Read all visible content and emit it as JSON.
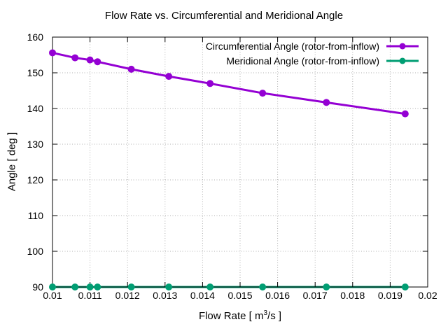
{
  "chart_data": {
    "type": "line",
    "title": "Flow Rate vs. Circumferential and Meridional Angle",
    "xlabel": "Flow Rate [ m^3/s ]",
    "ylabel": "Angle [ deg ]",
    "xlim": [
      0.01,
      0.02
    ],
    "ylim": [
      90,
      160
    ],
    "xticks": [
      0.01,
      0.011,
      0.012,
      0.013,
      0.014,
      0.015,
      0.016,
      0.017,
      0.018,
      0.019,
      0.02
    ],
    "xtick_labels": [
      "0.01",
      "0.011",
      "0.012",
      "0.013",
      "0.014",
      "0.015",
      "0.016",
      "0.017",
      "0.018",
      "0.019",
      "0.02"
    ],
    "yticks": [
      90,
      100,
      110,
      120,
      130,
      140,
      150,
      160
    ],
    "ytick_labels": [
      "90",
      "100",
      "110",
      "120",
      "130",
      "140",
      "150",
      "160"
    ],
    "grid": true,
    "legend_position": "top-right-inside",
    "x": [
      0.01,
      0.0106,
      0.011,
      0.0112,
      0.0121,
      0.0131,
      0.0142,
      0.0156,
      0.0173,
      0.0194
    ],
    "series": [
      {
        "name": "Circumferential Angle (rotor-from-inflow)",
        "color": "#9400d3",
        "marker": "circle",
        "values": [
          155.6,
          154.2,
          153.6,
          153.1,
          151.0,
          149.0,
          147.0,
          144.3,
          141.7,
          138.5
        ]
      },
      {
        "name": "Meridional Angle (rotor-from-inflow)",
        "color": "#009e73",
        "marker": "circle",
        "values": [
          90,
          90,
          90,
          90,
          90,
          90,
          90,
          90,
          90,
          90
        ]
      }
    ]
  },
  "axes": {
    "xlabel_parts": {
      "pre": "Flow Rate [ m",
      "sup": "3",
      "post": "/s ]"
    }
  },
  "style": {
    "grid_color": "#b0b0b0",
    "border_color": "#000000",
    "background": "#ffffff"
  }
}
